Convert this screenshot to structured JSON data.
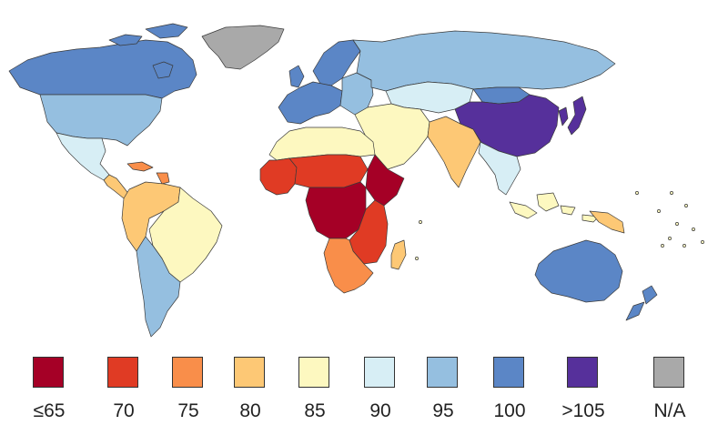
{
  "map": {
    "regions": [
      {
        "region": "Greenland",
        "category": "N/A"
      },
      {
        "region": "Canada",
        "category": "100"
      },
      {
        "region": "United States",
        "category": "95"
      },
      {
        "region": "Mexico",
        "category": "90"
      },
      {
        "region": "Central America",
        "category": "80"
      },
      {
        "region": "Caribbean",
        "category": "75"
      },
      {
        "region": "Northern South America",
        "category": "80"
      },
      {
        "region": "Brazil",
        "category": "85"
      },
      {
        "region": "Southern Cone",
        "category": "95"
      },
      {
        "region": "Western Europe",
        "category": "100"
      },
      {
        "region": "Scandinavia",
        "category": "100"
      },
      {
        "region": "Eastern Europe",
        "category": "95"
      },
      {
        "region": "Russia",
        "category": "95"
      },
      {
        "region": "Central Asia",
        "category": "90"
      },
      {
        "region": "Middle East",
        "category": "85"
      },
      {
        "region": "North Africa",
        "category": "85"
      },
      {
        "region": "West Africa",
        "category": "70"
      },
      {
        "region": "Sahel",
        "category": "70"
      },
      {
        "region": "Central Africa",
        "category": "≤65"
      },
      {
        "region": "Horn of Africa",
        "category": "≤65"
      },
      {
        "region": "East Africa",
        "category": "70"
      },
      {
        "region": "Southern Africa",
        "category": "75"
      },
      {
        "region": "Madagascar",
        "category": "80"
      },
      {
        "region": "India",
        "category": "80"
      },
      {
        "region": "China",
        "category": ">105"
      },
      {
        "region": "Japan and Korea",
        "category": ">105"
      },
      {
        "region": "Mongolia",
        "category": "100"
      },
      {
        "region": "Southeast Asia",
        "category": "90"
      },
      {
        "region": "Indonesia",
        "category": "85"
      },
      {
        "region": "New Guinea",
        "category": "80"
      },
      {
        "region": "Australia",
        "category": "100"
      },
      {
        "region": "New Zealand",
        "category": "100"
      }
    ]
  },
  "legend": {
    "items": [
      {
        "label": "≤65",
        "color": "#a50026"
      },
      {
        "label": "70",
        "color": "#e03b24"
      },
      {
        "label": "75",
        "color": "#f98e4a"
      },
      {
        "label": "80",
        "color": "#fdc875"
      },
      {
        "label": "85",
        "color": "#fdf8c0"
      },
      {
        "label": "90",
        "color": "#d7eef5"
      },
      {
        "label": "95",
        "color": "#95bfe0"
      },
      {
        "label": "100",
        "color": "#5b86c6"
      },
      {
        "label": ">105",
        "color": "#56309b"
      },
      {
        "label": "N/A",
        "color": "#a9a9a9"
      }
    ]
  }
}
